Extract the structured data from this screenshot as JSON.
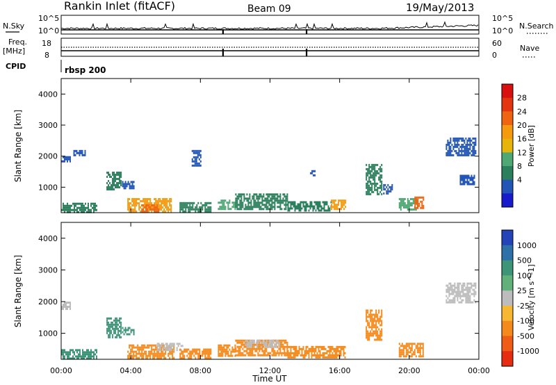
{
  "header": {
    "station": "Rankin Inlet (fitACF)",
    "beam": "Beam 09",
    "date": "19/May/2013"
  },
  "top_panel": {
    "nsky_label": "N.Sky",
    "nsky_ticks": [
      "10^5",
      "10^0"
    ],
    "nsearch_label": "N.Search",
    "nsearch_ticks": [
      "10^5",
      "10^0"
    ],
    "freq_label_1": "Freq.",
    "freq_label_2": "[MHz]",
    "freq_ticks": [
      "18",
      "8"
    ],
    "nave_label": "Nave",
    "nave_ticks": [
      "60",
      "0"
    ],
    "cpid_label": "CPID",
    "cpid_value": "rbsp 200",
    "marker_times_hours": [
      9.3,
      14.1
    ]
  },
  "power_colorbar": {
    "label": "Power [dB]",
    "ticks": [
      "28",
      "24",
      "20",
      "16",
      "12",
      "8",
      "4"
    ],
    "colors": [
      "#1a1acd",
      "#2255b5",
      "#2c7f5c",
      "#4fa874",
      "#e7b40a",
      "#f59a0f",
      "#ee6410",
      "#e23510",
      "#d91010"
    ]
  },
  "velocity_colorbar": {
    "label": "Velocity [m s^-1]",
    "ticks": [
      "1000",
      "500",
      "100",
      "25",
      "-25",
      "-100",
      "-500",
      "-1000"
    ],
    "colors": [
      "#2543b8",
      "#2d71a8",
      "#3d9476",
      "#62b07a",
      "#bcbcbc",
      "#f7b733",
      "#f48a1c",
      "#ef5c15",
      "#e62d12"
    ]
  },
  "chart_data": [
    {
      "type": "heatmap",
      "title": "Power",
      "xlabel": "",
      "ylabel": "Slant Range [km]",
      "xlim": [
        0,
        24
      ],
      "ylim": [
        180,
        4500
      ],
      "x_ticks": [
        "00:00",
        "04:00",
        "08:00",
        "12:00",
        "16:00",
        "20:00",
        "00:00"
      ],
      "y_ticks": [
        "1000",
        "2000",
        "3000",
        "4000"
      ],
      "patches": [
        {
          "t0": 0.0,
          "t1": 0.5,
          "r0": 1800,
          "r1": 2000,
          "value": 6
        },
        {
          "t0": 0.7,
          "t1": 1.4,
          "r0": 2050,
          "r1": 2200,
          "value": 6
        },
        {
          "t0": 2.6,
          "t1": 3.4,
          "r0": 900,
          "r1": 1500,
          "value": 9
        },
        {
          "t0": 3.5,
          "t1": 4.2,
          "r0": 950,
          "r1": 1200,
          "value": 7
        },
        {
          "t0": 0.0,
          "t1": 2.0,
          "r0": 200,
          "r1": 500,
          "value": 8
        },
        {
          "t0": 3.8,
          "t1": 6.3,
          "r0": 200,
          "r1": 650,
          "value": 22
        },
        {
          "t0": 4.6,
          "t1": 5.6,
          "r0": 200,
          "r1": 450,
          "value": 27
        },
        {
          "t0": 6.8,
          "t1": 8.6,
          "r0": 220,
          "r1": 520,
          "value": 11
        },
        {
          "t0": 7.5,
          "t1": 8.0,
          "r0": 1700,
          "r1": 2200,
          "value": 6
        },
        {
          "t0": 9.0,
          "t1": 10.0,
          "r0": 300,
          "r1": 600,
          "value": 14
        },
        {
          "t0": 10.0,
          "t1": 13.0,
          "r0": 300,
          "r1": 800,
          "value": 9
        },
        {
          "t0": 13.0,
          "t1": 15.5,
          "r0": 260,
          "r1": 550,
          "value": 8
        },
        {
          "t0": 15.5,
          "t1": 16.3,
          "r0": 300,
          "r1": 600,
          "value": 21
        },
        {
          "t0": 14.3,
          "t1": 14.6,
          "r0": 1400,
          "r1": 1550,
          "value": 5
        },
        {
          "t0": 17.5,
          "t1": 18.4,
          "r0": 800,
          "r1": 1750,
          "value": 10
        },
        {
          "t0": 18.5,
          "t1": 19.0,
          "r0": 800,
          "r1": 1100,
          "value": 7
        },
        {
          "t0": 19.4,
          "t1": 20.5,
          "r0": 250,
          "r1": 650,
          "value": 13
        },
        {
          "t0": 20.3,
          "t1": 20.8,
          "r0": 300,
          "r1": 700,
          "value": 24
        },
        {
          "t0": 22.1,
          "t1": 23.8,
          "r0": 2000,
          "r1": 2600,
          "value": 6
        },
        {
          "t0": 22.9,
          "t1": 23.7,
          "r0": 1100,
          "r1": 1400,
          "value": 5
        }
      ]
    },
    {
      "type": "heatmap",
      "title": "Velocity",
      "xlabel": "Time UT",
      "ylabel": "Slant Range [km]",
      "xlim": [
        0,
        24
      ],
      "ylim": [
        180,
        4500
      ],
      "x_ticks": [
        "00:00",
        "04:00",
        "08:00",
        "12:00",
        "16:00",
        "20:00",
        "00:00"
      ],
      "y_ticks": [
        "1000",
        "2000",
        "3000",
        "4000"
      ],
      "patches": [
        {
          "t0": 0.0,
          "t1": 0.5,
          "r0": 1800,
          "r1": 2000,
          "value": 10
        },
        {
          "t0": 2.6,
          "t1": 3.4,
          "r0": 900,
          "r1": 1500,
          "value": 150
        },
        {
          "t0": 3.5,
          "t1": 4.2,
          "r0": 950,
          "r1": 1200,
          "value": 150
        },
        {
          "t0": 0.0,
          "t1": 2.0,
          "r0": 200,
          "r1": 500,
          "value": 150
        },
        {
          "t0": 3.8,
          "t1": 6.5,
          "r0": 200,
          "r1": 650,
          "value": -150
        },
        {
          "t0": 5.5,
          "t1": 7.0,
          "r0": 450,
          "r1": 700,
          "value": 0
        },
        {
          "t0": 6.8,
          "t1": 8.6,
          "r0": 220,
          "r1": 520,
          "value": -150
        },
        {
          "t0": 9.0,
          "t1": 10.0,
          "r0": 300,
          "r1": 650,
          "value": -150
        },
        {
          "t0": 10.0,
          "t1": 13.0,
          "r0": 300,
          "r1": 800,
          "value": -150
        },
        {
          "t0": 10.5,
          "t1": 12.5,
          "r0": 550,
          "r1": 800,
          "value": 0
        },
        {
          "t0": 13.0,
          "t1": 16.3,
          "r0": 260,
          "r1": 600,
          "value": -150
        },
        {
          "t0": 17.5,
          "t1": 18.4,
          "r0": 800,
          "r1": 1750,
          "value": -150
        },
        {
          "t0": 19.4,
          "t1": 20.8,
          "r0": 250,
          "r1": 700,
          "value": -150
        },
        {
          "t0": 22.1,
          "t1": 23.8,
          "r0": 2000,
          "r1": 2600,
          "value": 0
        }
      ]
    }
  ]
}
